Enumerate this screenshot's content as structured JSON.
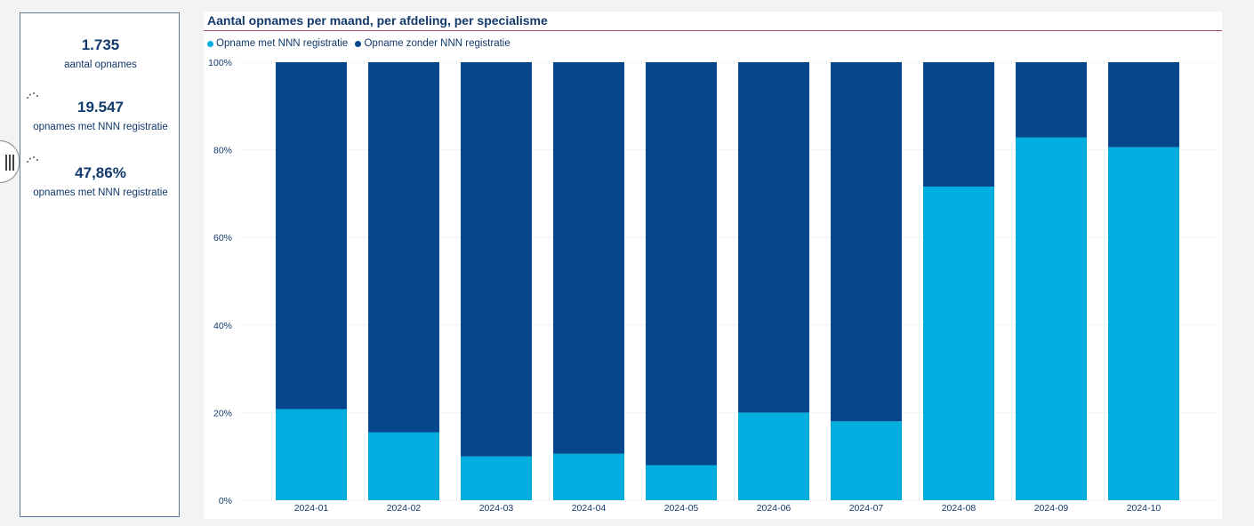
{
  "kpis": [
    {
      "value": "1.735",
      "label": "aantal opnames"
    },
    {
      "value": "19.547",
      "label": "opnames met NNN registratie"
    },
    {
      "value": "47,86%",
      "label": "opnames met NNN registratie"
    }
  ],
  "colors": {
    "series_with": "#00aee0",
    "series_without": "#05478a",
    "text": "#123a6b",
    "title_rule": "#a34b5b",
    "grid": "#d9d9d9"
  },
  "icons": {
    "filter_pane_toggle": "vertical-bars-icon",
    "kpi_spinner": "loading-dots-icon"
  },
  "chart_data": {
    "type": "bar",
    "stacked": "100%",
    "title": "Aantal opnames per maand, per afdeling, per specialisme",
    "xlabel": "",
    "ylabel": "",
    "categories": [
      "2024-01",
      "2024-02",
      "2024-03",
      "2024-04",
      "2024-05",
      "2024-06",
      "2024-07",
      "2024-08",
      "2024-09",
      "2024-10"
    ],
    "series": [
      {
        "name": "Opname met NNN registratie",
        "values": [
          20.8,
          15.5,
          10.0,
          10.6,
          8.0,
          20.0,
          18.0,
          71.6,
          82.8,
          80.6
        ]
      },
      {
        "name": "Opname zonder NNN registratie",
        "values": [
          79.2,
          84.5,
          90.0,
          89.4,
          92.0,
          80.0,
          82.0,
          28.4,
          17.2,
          19.4
        ]
      }
    ],
    "ylim": [
      0,
      100
    ],
    "yticks": [
      "0%",
      "20%",
      "40%",
      "60%",
      "80%",
      "100%"
    ],
    "grid": true,
    "legend_position": "top-left"
  }
}
